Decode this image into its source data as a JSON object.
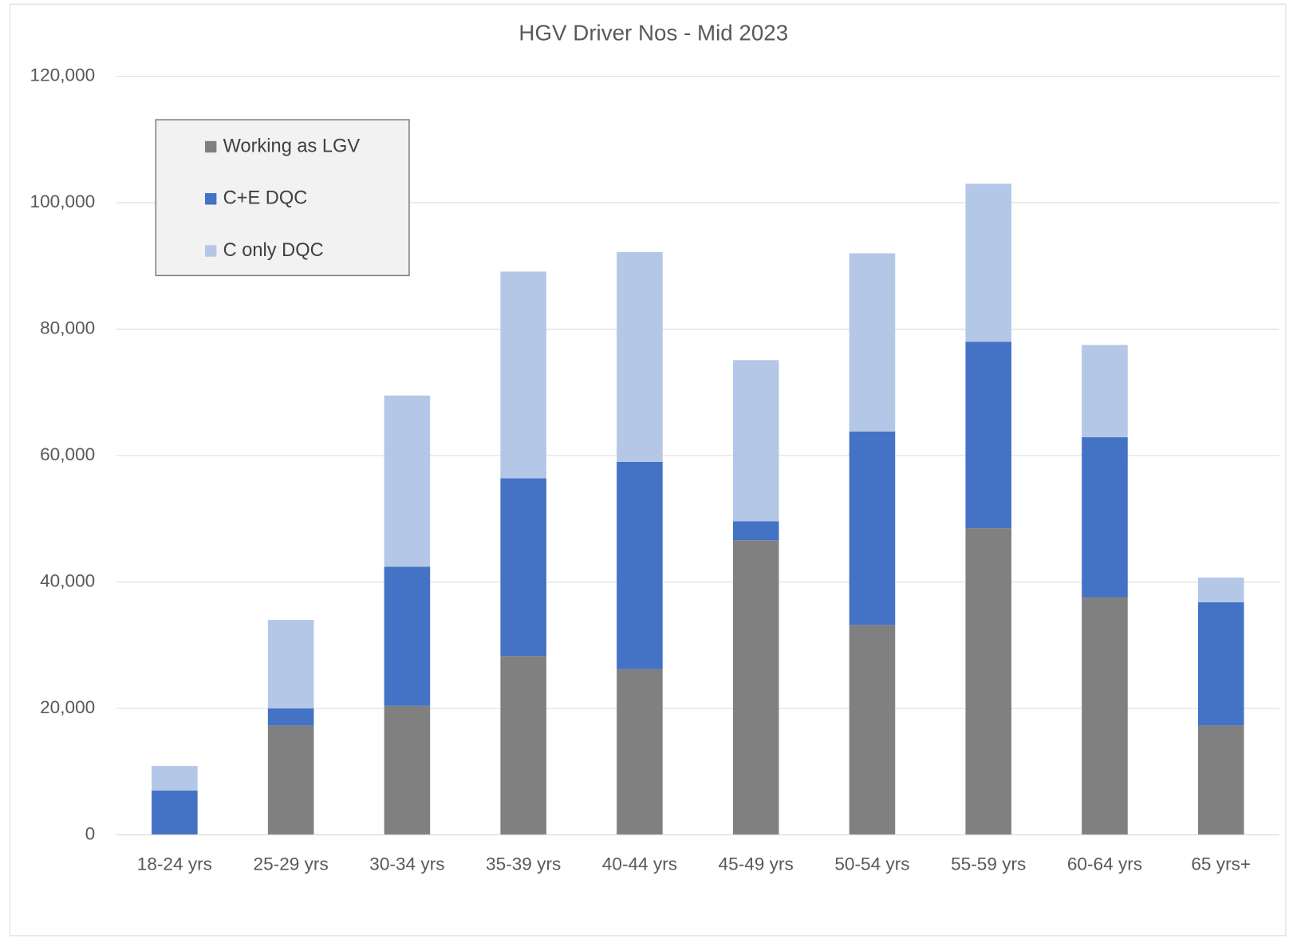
{
  "chart_data": {
    "type": "bar",
    "stacked": true,
    "title": "HGV Driver Nos - Mid 2023",
    "categories": [
      "18-24 yrs",
      "25-29 yrs",
      "30-34 yrs",
      "35-39 yrs",
      "40-44 yrs",
      "45-49 yrs",
      "50-54 yrs",
      "55-59 yrs",
      "60-64 yrs",
      "65 yrs+"
    ],
    "series": [
      {
        "name": "Working as LGV",
        "color": "#808080",
        "values": [
          0,
          17300,
          20400,
          28300,
          26200,
          46600,
          33200,
          48500,
          37600,
          17300
        ]
      },
      {
        "name": "C+E DQC",
        "color": "#4472c4",
        "values": [
          7000,
          2700,
          22000,
          28100,
          32800,
          3000,
          30600,
          29500,
          25300,
          19500
        ]
      },
      {
        "name": "C only DQC",
        "color": "#b4c7e7",
        "values": [
          3900,
          14000,
          27100,
          32700,
          33200,
          25500,
          28200,
          25000,
          14600,
          3900
        ]
      }
    ],
    "ylim": [
      0,
      120000
    ],
    "yticks": [
      0,
      {
        "value": 20000,
        "label": "20,000"
      },
      {
        "value": 40000,
        "label": "40,000"
      },
      {
        "value": 60000,
        "label": "60,000"
      },
      {
        "value": 80000,
        "label": "80,000"
      },
      {
        "value": 100000,
        "label": "100,000"
      },
      {
        "value": 120000,
        "label": "120,000"
      }
    ],
    "grid": true,
    "legend": "upper left"
  }
}
